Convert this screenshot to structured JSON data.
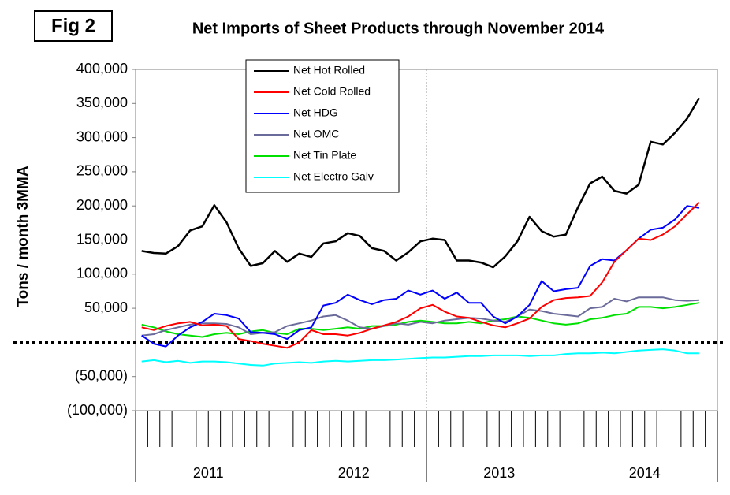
{
  "chart_data": {
    "type": "line",
    "figure_label": "Fig 2",
    "title": "Net Imports of Sheet Products through November 2014",
    "y_label": "Tons / month 3MMA",
    "categories": [
      null,
      null,
      null,
      null,
      null,
      null,
      null,
      null,
      null,
      null,
      null,
      null,
      null,
      null,
      null,
      null,
      null,
      null,
      null,
      null,
      null,
      null,
      null,
      null,
      null,
      null,
      null,
      null,
      null,
      null,
      null,
      null,
      null,
      null,
      null,
      null,
      null,
      null,
      null,
      null,
      null,
      null,
      null,
      null,
      null,
      null,
      null
    ],
    "x_group_labels": [
      "2011",
      "2012",
      "2013",
      "2014"
    ],
    "ylim": [
      -100000,
      400000
    ],
    "yticks": [
      {
        "value": -100000,
        "label": "(100,000)"
      },
      {
        "value": -50000,
        "label": "(50,000)"
      },
      {
        "value": 50000,
        "label": "50,000"
      },
      {
        "value": 100000,
        "label": "100,000"
      },
      {
        "value": 150000,
        "label": "150,000"
      },
      {
        "value": 200000,
        "label": "200,000"
      },
      {
        "value": 250000,
        "label": "250,000"
      },
      {
        "value": 300000,
        "label": "300,000"
      },
      {
        "value": 350000,
        "label": "350,000"
      },
      {
        "value": 400000,
        "label": "400,000"
      }
    ],
    "series": [
      {
        "name": "Net Hot Rolled",
        "color": "#000000",
        "values": [
          134000,
          131000,
          130000,
          141000,
          164000,
          170000,
          201000,
          176000,
          138000,
          112000,
          116000,
          134000,
          118000,
          130000,
          125000,
          145000,
          148000,
          160000,
          156000,
          138000,
          134000,
          120000,
          132000,
          148000,
          152000,
          150000,
          120000,
          120000,
          117000,
          110000,
          126000,
          148000,
          184000,
          163000,
          155000,
          158000,
          198000,
          233000,
          243000,
          222000,
          218000,
          231000,
          294000,
          290000,
          307000,
          328000,
          358000
        ]
      },
      {
        "name": "Net Cold Rolled",
        "color": "#ff0000",
        "values": [
          22000,
          18000,
          24000,
          28000,
          30000,
          25000,
          26000,
          24000,
          5000,
          2000,
          -2000,
          -5000,
          -8000,
          0,
          18000,
          12000,
          12000,
          10000,
          14000,
          20000,
          25000,
          30000,
          38000,
          50000,
          55000,
          45000,
          38000,
          36000,
          30000,
          25000,
          22000,
          28000,
          35000,
          52000,
          62000,
          65000,
          66000,
          68000,
          88000,
          118000,
          135000,
          152000,
          150000,
          158000,
          170000,
          188000,
          205000
        ]
      },
      {
        "name": "Net HDG",
        "color": "#0000ff",
        "values": [
          10000,
          -2000,
          -6000,
          10000,
          22000,
          30000,
          42000,
          40000,
          35000,
          15000,
          14000,
          12000,
          5000,
          18000,
          22000,
          54000,
          58000,
          70000,
          62000,
          56000,
          62000,
          64000,
          76000,
          70000,
          76000,
          64000,
          73000,
          58000,
          58000,
          38000,
          28000,
          38000,
          55000,
          90000,
          75000,
          78000,
          80000,
          112000,
          122000,
          120000,
          135000,
          152000,
          165000,
          168000,
          180000,
          200000,
          197000
        ]
      },
      {
        "name": "Net OMC",
        "color": "#6b6b9b",
        "values": [
          10000,
          12000,
          18000,
          22000,
          26000,
          28000,
          28000,
          27000,
          22000,
          12000,
          14000,
          15000,
          24000,
          28000,
          32000,
          38000,
          40000,
          32000,
          22000,
          20000,
          24000,
          28000,
          26000,
          30000,
          28000,
          32000,
          34000,
          36000,
          35000,
          32000,
          30000,
          38000,
          48000,
          46000,
          42000,
          40000,
          38000,
          50000,
          52000,
          64000,
          60000,
          66000,
          66000,
          66000,
          62000,
          61000,
          62000
        ]
      },
      {
        "name": "Net Tin Plate",
        "color": "#00e000",
        "values": [
          26000,
          22000,
          16000,
          12000,
          10000,
          8000,
          12000,
          14000,
          12000,
          16000,
          18000,
          14000,
          12000,
          20000,
          20000,
          18000,
          20000,
          22000,
          20000,
          24000,
          24000,
          26000,
          30000,
          32000,
          30000,
          28000,
          28000,
          30000,
          28000,
          32000,
          34000,
          38000,
          36000,
          32000,
          28000,
          26000,
          28000,
          34000,
          36000,
          40000,
          42000,
          52000,
          52000,
          50000,
          52000,
          55000,
          58000
        ]
      },
      {
        "name": "Net Electro Galv",
        "color": "#00ffff",
        "values": [
          -28000,
          -26000,
          -29000,
          -27000,
          -30000,
          -28000,
          -28000,
          -29000,
          -31000,
          -33000,
          -34000,
          -31000,
          -30000,
          -29000,
          -30000,
          -28000,
          -27000,
          -28000,
          -27000,
          -26000,
          -26000,
          -25000,
          -24000,
          -23000,
          -22000,
          -22000,
          -21000,
          -20000,
          -20000,
          -19000,
          -19000,
          -19000,
          -20000,
          -19000,
          -19000,
          -17000,
          -16000,
          -16000,
          -15000,
          -16000,
          -14000,
          -12000,
          -11000,
          -10000,
          -12000,
          -16000,
          -16000
        ]
      }
    ]
  }
}
